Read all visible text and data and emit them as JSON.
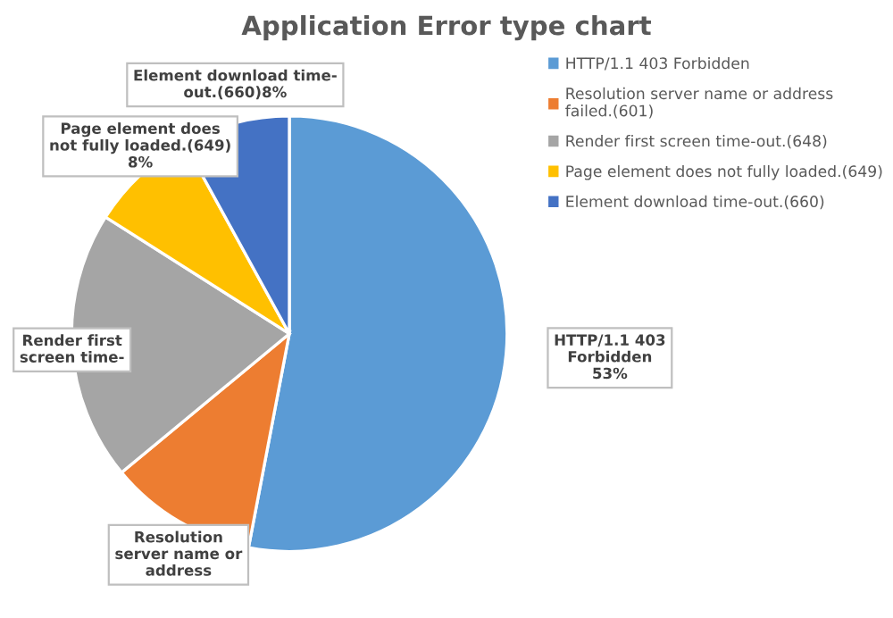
{
  "chart_data": {
    "type": "pie",
    "title": "Application Error type chart",
    "categories": [
      "HTTP/1.1 403 Forbidden",
      "Resolution server name or address\nfailed.(601)",
      "Render first screen time-out.(648)",
      "Page element does not fully loaded.(649)",
      "Element download time-out.(660)"
    ],
    "values": [
      53,
      11,
      20,
      8,
      8
    ],
    "colors": [
      "#5b9bd5",
      "#ed7d31",
      "#a5a5a5",
      "#ffc000",
      "#4472c4"
    ],
    "value_labels": [
      "HTTP/1.1 403\nForbidden\n53%",
      "Resolution\nserver name or\naddress",
      "Render first\nscreen time-",
      "Page element does\nnot fully loaded.(649)\n8%",
      "Element download time-\nout.(660)8%"
    ],
    "legend": "top right"
  }
}
